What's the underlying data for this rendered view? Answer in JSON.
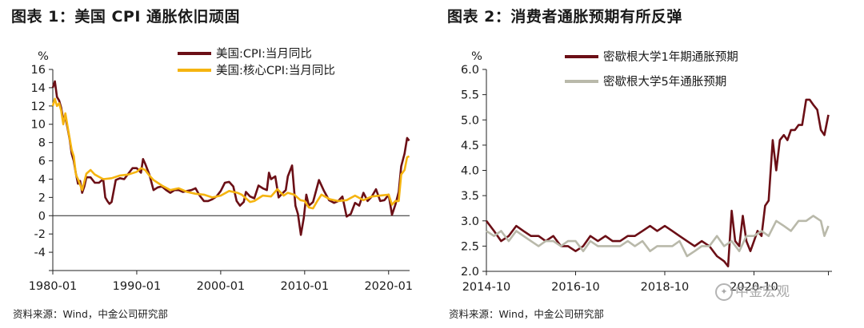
{
  "chart_data": [
    {
      "type": "line",
      "title": "图表 1：美国 CPI 通胀依旧顽固",
      "ylabel": "%",
      "xlabel": "",
      "ylim": [
        -6,
        16
      ],
      "yticks": [
        -6,
        -4,
        -2,
        0,
        2,
        4,
        6,
        8,
        10,
        12,
        14,
        16
      ],
      "ytick_labels": [
        "",
        "-4",
        "-2",
        "0",
        "2",
        "4",
        "6",
        "8",
        "10",
        "12",
        "14",
        "16"
      ],
      "xlim": [
        1980.0,
        2022.5
      ],
      "xticks": [
        1980.0,
        1990.0,
        2000.0,
        2010.0,
        2020.0
      ],
      "xtick_labels": [
        "1980-01",
        "1990-01",
        "2000-01",
        "2010-01",
        "2020-01"
      ],
      "grid": false,
      "legend": "top-right",
      "series": [
        {
          "name": "美国:CPI:当月同比",
          "color": "#6b0f16",
          "x": [
            1980.0,
            1980.25,
            1980.5,
            1980.75,
            1981.0,
            1981.25,
            1981.5,
            1981.75,
            1982.0,
            1982.25,
            1982.5,
            1982.75,
            1983.0,
            1983.25,
            1983.5,
            1983.75,
            1984.0,
            1984.5,
            1985.0,
            1985.5,
            1986.0,
            1986.25,
            1986.5,
            1986.75,
            1987.0,
            1987.5,
            1988.0,
            1988.5,
            1989.0,
            1989.5,
            1990.0,
            1990.5,
            1990.75,
            1991.0,
            1991.5,
            1992.0,
            1992.5,
            1993.0,
            1993.5,
            1994.0,
            1994.5,
            1995.0,
            1995.5,
            1996.0,
            1996.5,
            1997.0,
            1997.5,
            1998.0,
            1998.5,
            1999.0,
            1999.5,
            2000.0,
            2000.5,
            2001.0,
            2001.5,
            2001.9,
            2002.3,
            2002.75,
            2003.0,
            2003.5,
            2004.0,
            2004.5,
            2005.0,
            2005.5,
            2005.75,
            2006.0,
            2006.5,
            2006.9,
            2007.3,
            2007.75,
            2008.0,
            2008.5,
            2008.9,
            2009.2,
            2009.55,
            2009.9,
            2010.2,
            2010.5,
            2011.0,
            2011.7,
            2012.3,
            2012.9,
            2013.5,
            2014.0,
            2014.5,
            2015.0,
            2015.5,
            2016.0,
            2016.5,
            2017.0,
            2017.5,
            2018.0,
            2018.5,
            2019.0,
            2019.5,
            2020.0,
            2020.4,
            2020.8,
            2021.2,
            2021.5,
            2021.9,
            2022.2,
            2022.45
          ],
          "values": [
            14.0,
            14.7,
            13.0,
            12.6,
            11.8,
            10.5,
            10.8,
            9.6,
            8.4,
            6.8,
            6.0,
            4.6,
            3.5,
            3.8,
            2.5,
            3.2,
            4.2,
            4.2,
            3.6,
            3.6,
            4.0,
            2.0,
            1.6,
            1.3,
            1.5,
            3.9,
            4.1,
            4.0,
            4.6,
            5.2,
            5.2,
            4.7,
            6.2,
            5.7,
            4.5,
            2.8,
            3.1,
            3.2,
            2.8,
            2.5,
            2.8,
            2.8,
            2.6,
            2.7,
            2.8,
            3.0,
            2.2,
            1.6,
            1.6,
            1.8,
            2.1,
            2.7,
            3.6,
            3.7,
            3.2,
            1.6,
            1.1,
            1.5,
            2.6,
            2.1,
            1.9,
            3.3,
            3.0,
            2.8,
            4.7,
            4.0,
            4.3,
            2.0,
            2.4,
            2.8,
            4.3,
            5.5,
            1.1,
            0.2,
            -2.1,
            -0.2,
            2.3,
            1.1,
            1.5,
            3.9,
            2.7,
            1.7,
            1.4,
            1.6,
            2.1,
            -0.1,
            0.2,
            1.4,
            1.1,
            2.5,
            1.6,
            2.1,
            2.9,
            1.6,
            1.7,
            2.3,
            0.1,
            1.2,
            2.6,
            5.4,
            6.8,
            8.5,
            8.2
          ]
        },
        {
          "name": "美国:核心CPI:当月同比",
          "color": "#f5b410",
          "x": [
            1980.0,
            1980.25,
            1980.5,
            1980.75,
            1981.0,
            1981.25,
            1981.5,
            1981.75,
            1982.0,
            1982.25,
            1982.5,
            1982.75,
            1983.0,
            1983.5,
            1984.0,
            1984.5,
            1985.0,
            1986.0,
            1987.0,
            1988.0,
            1989.0,
            1990.0,
            1990.5,
            1991.0,
            1991.5,
            1992.0,
            1993.0,
            1994.0,
            1995.0,
            1996.0,
            1997.0,
            1998.0,
            1999.0,
            2000.0,
            2001.0,
            2002.0,
            2002.5,
            2003.0,
            2003.5,
            2004.0,
            2005.0,
            2006.0,
            2006.75,
            2007.5,
            2008.0,
            2008.75,
            2009.5,
            2010.0,
            2010.5,
            2011.0,
            2011.5,
            2012.0,
            2013.0,
            2014.0,
            2015.0,
            2016.0,
            2017.0,
            2018.0,
            2019.0,
            2020.0,
            2020.4,
            2020.8,
            2021.2,
            2021.5,
            2021.9,
            2022.2,
            2022.45
          ],
          "values": [
            12.0,
            12.8,
            12.0,
            12.3,
            11.5,
            10.0,
            11.2,
            9.8,
            8.5,
            7.2,
            6.5,
            4.5,
            4.0,
            2.8,
            4.6,
            5.0,
            4.5,
            4.0,
            4.1,
            4.4,
            4.5,
            4.8,
            5.2,
            5.0,
            4.4,
            3.9,
            3.3,
            2.8,
            3.0,
            2.6,
            2.4,
            2.3,
            2.0,
            2.2,
            2.7,
            2.5,
            2.3,
            1.9,
            1.5,
            1.6,
            2.2,
            2.1,
            2.9,
            2.2,
            2.5,
            2.3,
            1.7,
            1.6,
            0.9,
            0.8,
            1.6,
            2.3,
            1.8,
            1.6,
            1.7,
            2.2,
            1.7,
            2.1,
            2.2,
            2.3,
            1.2,
            1.6,
            1.6,
            4.5,
            5.0,
            6.4,
            6.5
          ]
        }
      ]
    },
    {
      "type": "line",
      "title": "图表 2：消费者通胀预期有所反弹",
      "ylabel": "%",
      "xlabel": "",
      "ylim": [
        2.0,
        6.0
      ],
      "yticks": [
        2.0,
        2.5,
        3.0,
        3.5,
        4.0,
        4.5,
        5.0,
        5.5,
        6.0
      ],
      "ytick_labels": [
        "2.0",
        "2.5",
        "3.0",
        "3.5",
        "4.0",
        "4.5",
        "5.0",
        "5.5",
        "6.0"
      ],
      "xlim": [
        2014.75,
        2022.5
      ],
      "xticks": [
        2014.75,
        2016.75,
        2018.75,
        2020.75,
        2022.42
      ],
      "xtick_labels": [
        "2014-10",
        "2016-10",
        "2018-10",
        "2020-10",
        ""
      ],
      "grid": false,
      "legend": "top-left",
      "series": [
        {
          "name": "密歇根大学1年期通胀预期",
          "color": "#6b0f16",
          "x": [
            2014.75,
            2014.92,
            2015.08,
            2015.25,
            2015.42,
            2015.58,
            2015.75,
            2015.92,
            2016.08,
            2016.25,
            2016.42,
            2016.58,
            2016.75,
            2016.92,
            2017.08,
            2017.25,
            2017.42,
            2017.58,
            2017.75,
            2017.92,
            2018.08,
            2018.25,
            2018.42,
            2018.58,
            2018.75,
            2018.92,
            2019.08,
            2019.25,
            2019.42,
            2019.58,
            2019.75,
            2019.92,
            2020.08,
            2020.17,
            2020.25,
            2020.33,
            2020.42,
            2020.5,
            2020.58,
            2020.67,
            2020.75,
            2020.83,
            2020.92,
            2021.0,
            2021.08,
            2021.17,
            2021.25,
            2021.33,
            2021.42,
            2021.5,
            2021.58,
            2021.67,
            2021.75,
            2021.83,
            2021.92,
            2022.0,
            2022.08,
            2022.17,
            2022.25,
            2022.33,
            2022.42
          ],
          "values": [
            3.0,
            2.8,
            2.6,
            2.7,
            2.9,
            2.8,
            2.7,
            2.7,
            2.6,
            2.7,
            2.5,
            2.5,
            2.4,
            2.5,
            2.7,
            2.6,
            2.7,
            2.6,
            2.6,
            2.7,
            2.7,
            2.8,
            2.9,
            2.8,
            2.9,
            2.8,
            2.7,
            2.6,
            2.5,
            2.6,
            2.5,
            2.3,
            2.2,
            2.1,
            3.2,
            2.6,
            2.5,
            3.1,
            2.6,
            2.4,
            2.6,
            2.8,
            2.7,
            3.3,
            3.4,
            4.6,
            4.0,
            4.6,
            4.7,
            4.6,
            4.8,
            4.8,
            4.9,
            4.9,
            5.4,
            5.4,
            5.3,
            5.2,
            4.8,
            4.7,
            5.1
          ]
        },
        {
          "name": "密歇根大学5年通胀预期",
          "color": "#b9b9aa",
          "x": [
            2014.75,
            2014.92,
            2015.08,
            2015.25,
            2015.42,
            2015.58,
            2015.75,
            2015.92,
            2016.08,
            2016.25,
            2016.42,
            2016.58,
            2016.75,
            2016.92,
            2017.08,
            2017.25,
            2017.42,
            2017.58,
            2017.75,
            2017.92,
            2018.08,
            2018.25,
            2018.42,
            2018.58,
            2018.75,
            2018.92,
            2019.08,
            2019.25,
            2019.42,
            2019.58,
            2019.75,
            2019.92,
            2020.08,
            2020.25,
            2020.42,
            2020.58,
            2020.75,
            2020.92,
            2021.08,
            2021.25,
            2021.42,
            2021.58,
            2021.75,
            2021.92,
            2022.08,
            2022.25,
            2022.33,
            2022.42
          ],
          "values": [
            2.8,
            2.7,
            2.8,
            2.6,
            2.8,
            2.7,
            2.6,
            2.5,
            2.6,
            2.6,
            2.5,
            2.6,
            2.6,
            2.4,
            2.6,
            2.5,
            2.5,
            2.5,
            2.5,
            2.6,
            2.5,
            2.6,
            2.4,
            2.5,
            2.5,
            2.5,
            2.6,
            2.3,
            2.4,
            2.5,
            2.5,
            2.7,
            2.5,
            2.6,
            2.4,
            2.7,
            2.7,
            2.8,
            2.7,
            3.0,
            2.9,
            2.8,
            3.0,
            3.0,
            3.1,
            3.0,
            2.7,
            2.9
          ]
        }
      ]
    }
  ],
  "sources": [
    "资料来源：Wind，中金公司研究部",
    "资料来源：Wind，中金公司研究部"
  ],
  "watermark": "中金宏观"
}
